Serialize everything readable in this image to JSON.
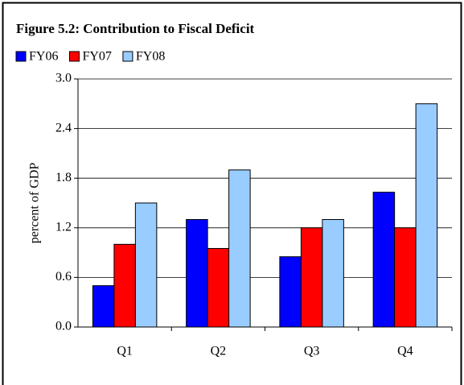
{
  "chart_data": {
    "type": "bar",
    "title": "Figure 5.2: Contribution to Fiscal Deficit",
    "y_label": "percent of GDP",
    "categories": [
      "Q1",
      "Q2",
      "Q3",
      "Q4"
    ],
    "series": [
      {
        "name": "FY06",
        "color": "#0000ff",
        "values": [
          0.5,
          1.3,
          0.85,
          1.63
        ]
      },
      {
        "name": "FY07",
        "color": "#ff0000",
        "values": [
          1.0,
          0.95,
          1.2,
          1.2
        ]
      },
      {
        "name": "FY08",
        "color": "#99ccff",
        "values": [
          1.5,
          1.9,
          1.3,
          2.7
        ]
      }
    ],
    "ylim": [
      0,
      3
    ],
    "yticks": [
      {
        "value": 0,
        "label": "0.0"
      },
      0.6,
      1.2,
      1.8,
      2.4,
      {
        "value": 3,
        "label": "3.0"
      }
    ],
    "grid": true
  }
}
